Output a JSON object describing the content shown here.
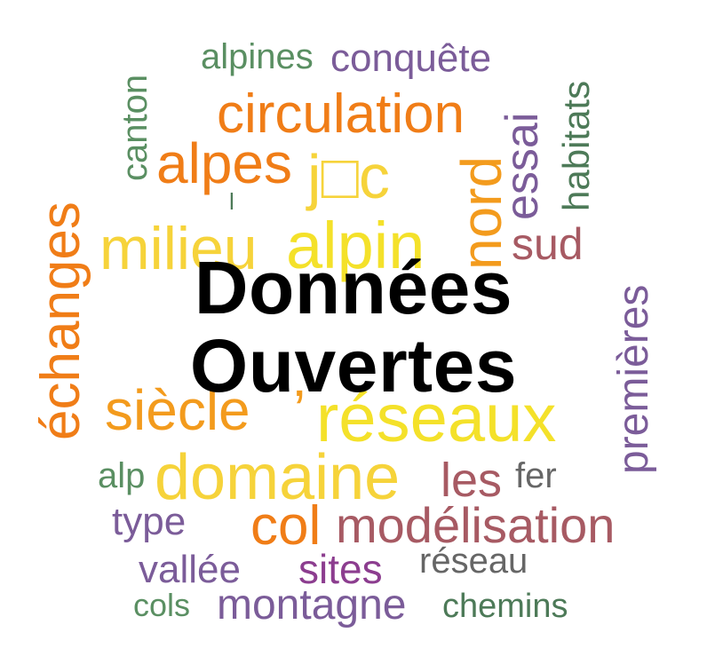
{
  "words": {
    "alpines": "alpines",
    "conquete": "conquête",
    "canton": "canton",
    "habitats": "habitats",
    "circulation": "circulation",
    "essai": "essai",
    "alpes": "alpes",
    "jc": "j□c",
    "nord": "nord",
    "milieu": "milieu",
    "alpin": "alpin",
    "sud": "sud",
    "echanges": "échanges",
    "premieres": "premières",
    "siecle": "siècle",
    "apostrophe": "’",
    "reseaux": "réseaux",
    "alp": "alp",
    "domaine": "domaine",
    "les": "les",
    "fer": "fer",
    "type": "type",
    "col": "col",
    "modelisation": "modélisation",
    "vallee": "vallée",
    "sites": "sites",
    "reseau": "réseau",
    "cols": "cols",
    "montagne": "montagne",
    "chemins": "chemins",
    "small_mark": "l"
  },
  "overlay": {
    "line1": "Données",
    "line2": "Ouvertes"
  },
  "palette": {
    "yellow": "#f6d33a",
    "yellow_bright": "#f4e12a",
    "orange": "#f07d17",
    "orange_light": "#f39b1d",
    "green": "#5a8f62",
    "green_dark": "#4d7a58",
    "purple": "#7b5c99",
    "purple_dark": "#8c3d8f",
    "rose": "#a75a63",
    "gray": "#666666"
  }
}
